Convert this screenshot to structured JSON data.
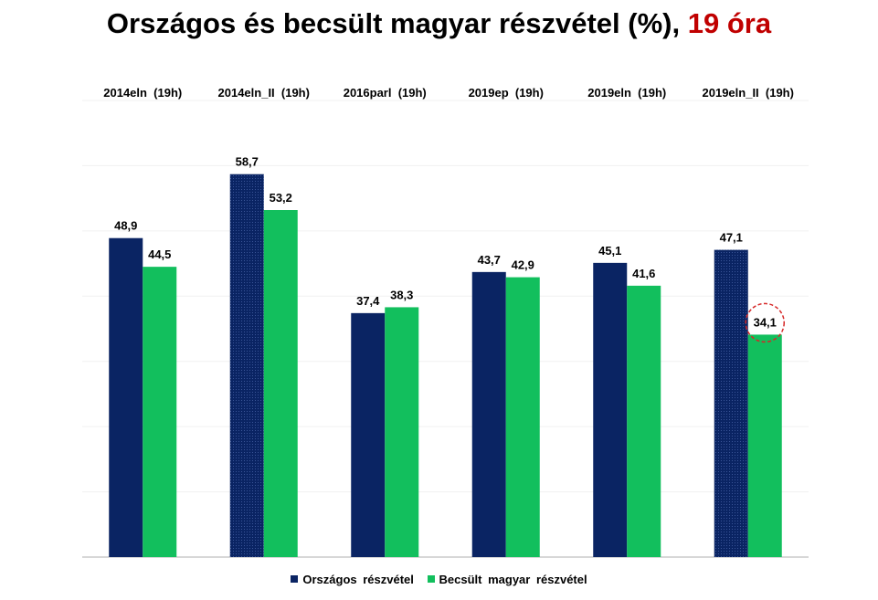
{
  "title": {
    "main": "Országos és becsült magyar részvétel (%),",
    "highlight": "19 óra"
  },
  "colors": {
    "series1": "#0a2463",
    "series2": "#12bf5d",
    "highlight_text": "#c00000",
    "circle": "#d62828"
  },
  "chart_data": {
    "type": "bar",
    "categories": [
      "2014eln (19h)",
      "2014eln_II (19h)",
      "2016parl (19h)",
      "2019ep (19h)",
      "2019eln (19h)",
      "2019eln_II (19h)"
    ],
    "series": [
      {
        "name": "Országos részvétel",
        "values": [
          48.9,
          58.7,
          37.4,
          43.7,
          45.1,
          47.1
        ],
        "labels": [
          "48,9",
          "58,7",
          "37,4",
          "43,7",
          "45,1",
          "47,1"
        ]
      },
      {
        "name": "Becsült magyar részvétel",
        "values": [
          44.5,
          53.2,
          38.3,
          42.9,
          41.6,
          34.1
        ],
        "labels": [
          "44,5",
          "53,2",
          "38,3",
          "42,9",
          "41,6",
          "34,1"
        ]
      }
    ],
    "ylim": [
      0,
      70
    ],
    "legend_position": "bottom",
    "category_labels_position": "top",
    "highlighted": {
      "series": 1,
      "category": 5
    },
    "patterned_series1_categories": [
      1,
      5
    ],
    "grid": true
  },
  "legend": {
    "items": [
      {
        "label": "Országos részvétel"
      },
      {
        "label": "Becsült magyar részvétel"
      }
    ]
  }
}
